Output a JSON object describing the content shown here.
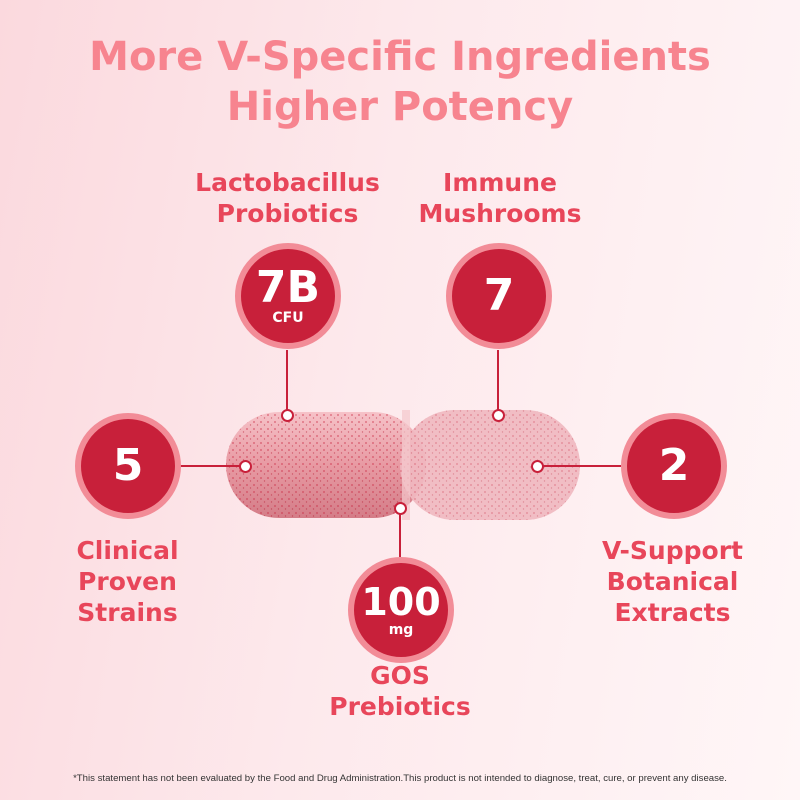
{
  "title": {
    "line1": "More V-Specific Ingredients",
    "line2": "Higher Potency"
  },
  "colors": {
    "accent": "#c8203a",
    "ring": "#f28c97",
    "title": "#f7848f",
    "label": "#e8465a"
  },
  "callouts": [
    {
      "value": "7B",
      "unit": "CFU",
      "label1": "Lactobacillus",
      "label2": "Probiotics"
    },
    {
      "value": "7",
      "unit": "",
      "label1": "Immune",
      "label2": "Mushrooms"
    },
    {
      "value": "5",
      "unit": "",
      "label1": "Clinical",
      "label2": "Proven",
      "label3": "Strains"
    },
    {
      "value": "2",
      "unit": "",
      "label1": "V-Support",
      "label2": "Botanical",
      "label3": "Extracts"
    },
    {
      "value": "100",
      "unit": "mg",
      "label1": "GOS",
      "label2": "Prebiotics"
    }
  ],
  "footnote": "*This statement has not been evaluated by the Food and Drug Administration.This product is not intended to diagnose, treat, cure, or prevent any disease."
}
